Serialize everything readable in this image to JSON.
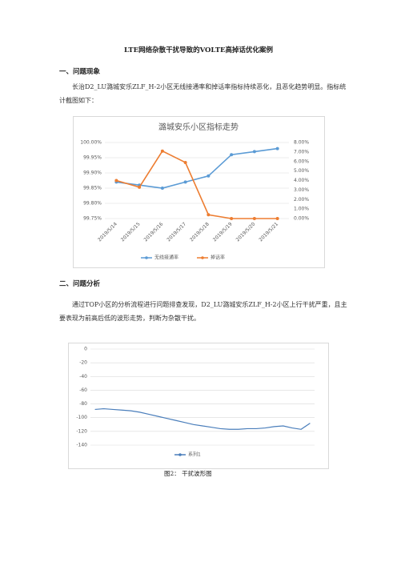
{
  "document": {
    "title": "LTE网络杂散干扰导致的VOLTE高掉话优化案例",
    "section1_heading": "一、问题现象",
    "section1_text": "长治D2_LU潞城安乐ZLF_H-2小区无线接通率和掉话率指标持续恶化，且恶化趋势明显。指标统计截图如下：",
    "section2_heading": "二、问题分析",
    "section2_text": "通过TOP小区的分析流程进行问题排查发现，D2_LU潞城安乐ZLF_H-2小区上行干扰严重，且主要表现为前高后低的波形走势，判断为杂散干扰。",
    "caption": "图2： 干扰波形图"
  },
  "chart_data": [
    {
      "type": "line",
      "title": "潞城安乐小区指标走势",
      "categories": [
        "2019/5/14",
        "2019/5/15",
        "2019/5/16",
        "2019/5/17",
        "2019/5/18",
        "2019/5/19",
        "2019/5/20",
        "2019/5/21"
      ],
      "series": [
        {
          "name": "无线接通率",
          "color": "#5b9bd5",
          "values": [
            99.87,
            99.86,
            99.85,
            99.87,
            99.89,
            99.96,
            99.97,
            99.98
          ]
        },
        {
          "name": "掉话率",
          "color": "#ed7d31",
          "axis": "y2",
          "values": [
            4.0,
            3.3,
            7.1,
            5.9,
            0.4,
            0.0,
            0.0,
            0.0
          ]
        }
      ],
      "ylim": [
        99.75,
        100.0
      ],
      "yticks": [
        {
          "value": 99.75,
          "label": "99.75%"
        },
        {
          "value": 99.8,
          "label": "99.80%"
        },
        {
          "value": 99.85,
          "label": "99.85%"
        },
        {
          "value": 99.9,
          "label": "99.90%"
        },
        {
          "value": 99.95,
          "label": "99.95%"
        },
        {
          "value": 100.0,
          "label": "100.00%"
        }
      ],
      "y2lim": [
        0,
        8
      ],
      "y2ticks": [
        {
          "value": 0,
          "label": "0.00%"
        },
        {
          "value": 1,
          "label": "1.00%"
        },
        {
          "value": 2,
          "label": "2.00%"
        },
        {
          "value": 3,
          "label": "3.00%"
        },
        {
          "value": 4,
          "label": "4.00%"
        },
        {
          "value": 5,
          "label": "5.00%"
        },
        {
          "value": 6,
          "label": "6.00%"
        },
        {
          "value": 7,
          "label": "7.00%"
        },
        {
          "value": 8,
          "label": "8.00%"
        }
      ],
      "grid": true,
      "legend": "bottom"
    },
    {
      "type": "line",
      "categories": [
        null,
        null,
        null,
        null,
        null,
        null,
        null,
        null,
        null,
        null,
        null,
        null,
        null,
        null,
        null,
        null,
        null,
        null,
        null,
        null,
        null,
        null,
        null,
        null,
        null
      ],
      "series": [
        {
          "name": "系列1",
          "color": "#4a7ebb",
          "values": [
            -88,
            -87,
            -88,
            -89,
            -90,
            -92,
            -95,
            -98,
            -101,
            -104,
            -107,
            -110,
            -112,
            -114,
            -116,
            -117,
            -117,
            -116,
            -116,
            -115,
            -113,
            -112,
            -115,
            -117,
            -108
          ]
        }
      ],
      "ylim": [
        -140,
        0
      ],
      "yticks": [
        -140,
        -120,
        -100,
        -80,
        -60,
        -40,
        -20,
        0
      ],
      "grid": true,
      "legend": "bottom"
    }
  ]
}
